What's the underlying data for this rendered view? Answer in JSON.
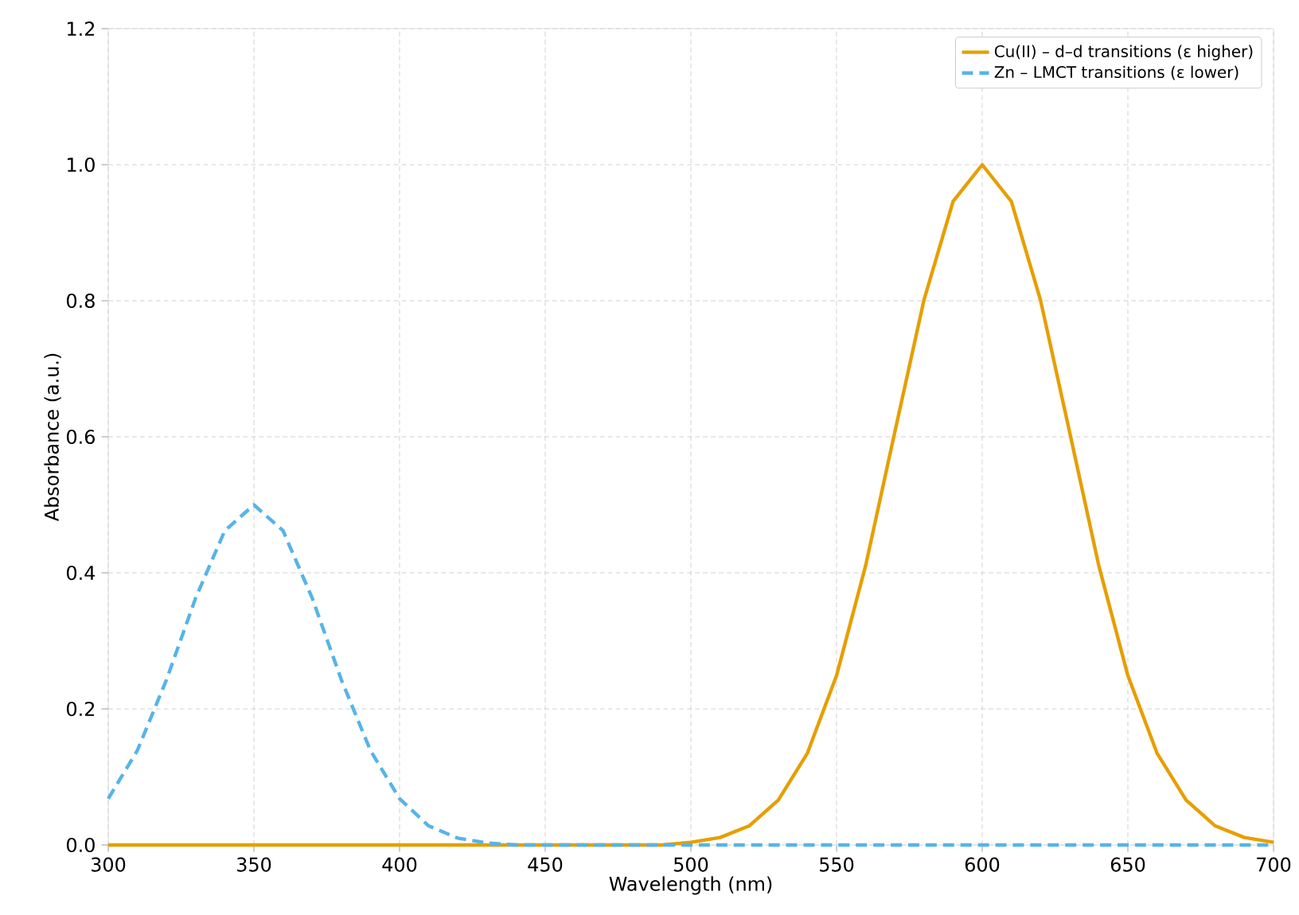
{
  "chart_data": {
    "type": "line",
    "xlabel": "Wavelength (nm)",
    "ylabel": "Absorbance (a.u.)",
    "x": [
      300,
      310,
      320,
      330,
      340,
      350,
      360,
      370,
      380,
      390,
      400,
      410,
      420,
      430,
      440,
      450,
      460,
      470,
      480,
      490,
      500,
      510,
      520,
      530,
      540,
      550,
      560,
      570,
      580,
      590,
      600,
      610,
      620,
      630,
      640,
      650,
      660,
      670,
      680,
      690,
      700
    ],
    "series": [
      {
        "name": "Cu(II) – d–d transitions (ε higher)",
        "color": "#e69f00",
        "line_style": "solid",
        "values": [
          0,
          0,
          0,
          0,
          0,
          0,
          0,
          0,
          0,
          0,
          0,
          0,
          0,
          0,
          0,
          0,
          0,
          0,
          0,
          0,
          0.004,
          0.011,
          0.028,
          0.066,
          0.135,
          0.249,
          0.411,
          0.607,
          0.801,
          0.946,
          1.0,
          0.946,
          0.801,
          0.607,
          0.411,
          0.249,
          0.135,
          0.066,
          0.028,
          0.011,
          0.004
        ]
      },
      {
        "name": "Zn – LMCT transitions (ε lower)",
        "color": "#56b4e9",
        "line_style": "dashed",
        "values": [
          0.068,
          0.139,
          0.243,
          0.363,
          0.462,
          0.5,
          0.462,
          0.363,
          0.243,
          0.139,
          0.068,
          0.028,
          0.01,
          0.003,
          0,
          0,
          0,
          0,
          0,
          0,
          0,
          0,
          0,
          0,
          0,
          0,
          0,
          0,
          0,
          0,
          0,
          0,
          0,
          0,
          0,
          0,
          0,
          0,
          0,
          0,
          0
        ]
      }
    ],
    "xlim": [
      300,
      700
    ],
    "ylim": [
      0,
      1.2
    ],
    "xticks": [
      300,
      350,
      400,
      450,
      500,
      550,
      600,
      650,
      700
    ],
    "yticks": [
      {
        "value": 0,
        "label": "0.0"
      },
      0.2,
      0.4,
      0.6,
      0.8,
      {
        "value": 1,
        "label": "1.0"
      },
      1.2
    ],
    "grid": true,
    "legend": "top right",
    "marker": "none"
  }
}
